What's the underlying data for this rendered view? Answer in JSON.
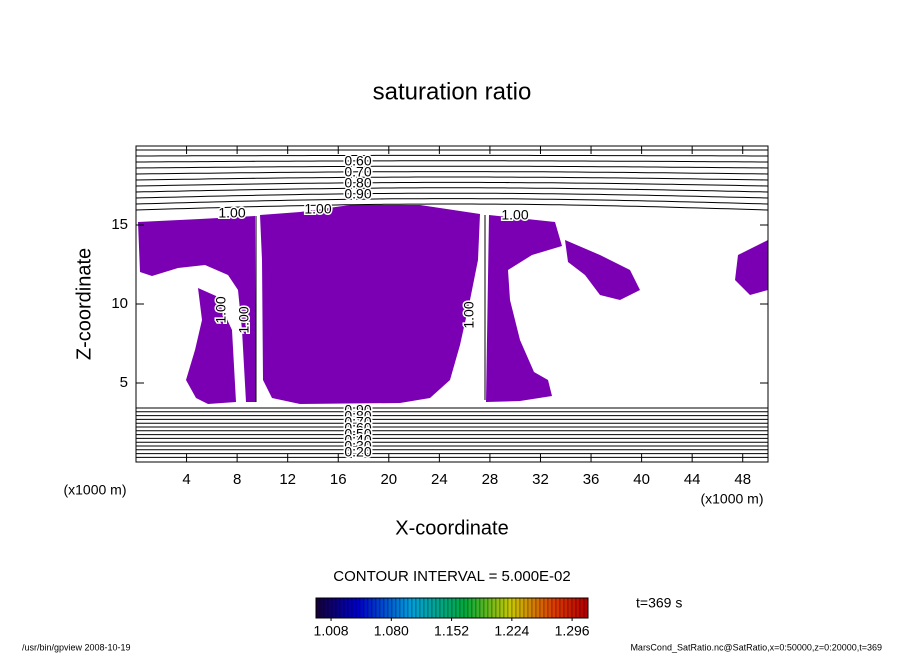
{
  "chart_data": {
    "type": "contour",
    "title": "saturation ratio",
    "xlabel": "X-coordinate",
    "ylabel": "Z-coordinate",
    "x_unit": "(x1000 m)",
    "y_unit": "(x1000 m)",
    "xlim": [
      0,
      50
    ],
    "ylim": [
      0,
      20
    ],
    "xticks": [
      4,
      8,
      12,
      16,
      20,
      24,
      28,
      32,
      36,
      40,
      44,
      48
    ],
    "yticks": [
      5,
      10,
      15
    ],
    "color": "#7b00b4",
    "contour_labels_top": [
      {
        "value": 0.6,
        "label": "0.60"
      },
      {
        "value": 0.7,
        "label": "0.70"
      },
      {
        "value": 0.8,
        "label": "0.80"
      },
      {
        "value": 0.9,
        "label": "0.90"
      }
    ],
    "contour_labels_one": [
      {
        "value": 1,
        "label": "1.00"
      },
      {
        "value": 1,
        "label": "1.00"
      },
      {
        "value": 1,
        "label": "1.00"
      },
      {
        "value": 1,
        "label": "1.00"
      },
      {
        "value": 1,
        "label": "1.00"
      },
      {
        "value": 1,
        "label": "1.00"
      }
    ],
    "contour_labels_bottom": [
      {
        "value": 0.9,
        "label": "0.90"
      },
      {
        "value": 0.8,
        "label": "0.80"
      },
      {
        "value": 0.7,
        "label": "0.70"
      },
      {
        "value": 0.6,
        "label": "0.60"
      },
      {
        "value": 0.5,
        "label": "0.50"
      },
      {
        "value": 0.4,
        "label": "0.40"
      },
      {
        "value": 0.3,
        "label": "0.30"
      },
      {
        "value": 0.2,
        "label": "0.20"
      }
    ],
    "contour_interval": "CONTOUR INTERVAL = 5.000E-02",
    "clim": [
      0.99,
      1.315
    ],
    "colorbar_ticks": [
      1.008,
      {
        "value": 1.08,
        "label": "1.080"
      },
      1.152,
      1.224,
      1.296
    ],
    "time": "t=369 s",
    "footer_left": "/usr/bin/gpview   2008-10-19",
    "footer_right": "MarsCond_SatRatio.nc@SatRatio,x=0:50000,z=0:20000,t=369"
  }
}
